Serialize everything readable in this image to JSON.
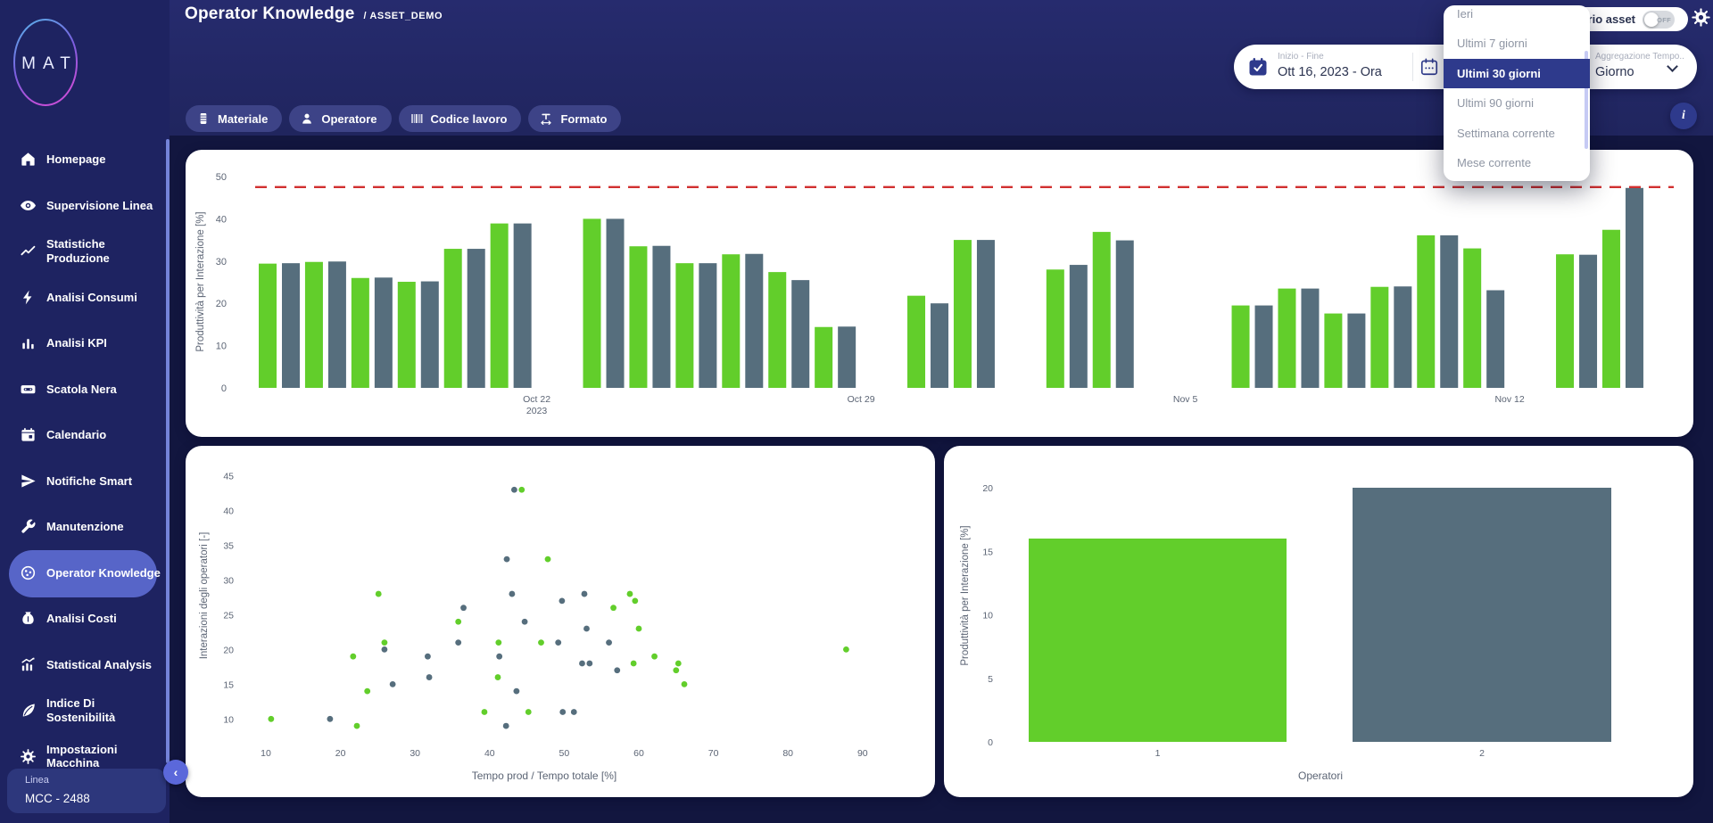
{
  "app": {
    "logo": "MAT",
    "title": "Operator Knowledge",
    "breadcrumb": "/ ASSET_DEMO"
  },
  "colors": {
    "green": "#62ce2b",
    "slate": "#566e7d",
    "threshold_red": "#d13030",
    "accent_indigo": "#2e3a8c",
    "selected_item": "#5765c8",
    "axis_text": "#5b6474"
  },
  "sidebar": {
    "items": [
      {
        "icon": "home-icon",
        "label": "Homepage"
      },
      {
        "icon": "eye-icon",
        "label": "Supervisione Linea"
      },
      {
        "icon": "trend-icon",
        "label": "Statistiche Produzione"
      },
      {
        "icon": "bolt-icon",
        "label": "Analisi Consumi"
      },
      {
        "icon": "kpi-icon",
        "label": "Analisi KPI"
      },
      {
        "icon": "blackbox-icon",
        "label": "Scatola Nera"
      },
      {
        "icon": "calendar-icon",
        "label": "Calendario"
      },
      {
        "icon": "send-icon",
        "label": "Notifiche Smart"
      },
      {
        "icon": "wrench-icon",
        "label": "Manutenzione"
      },
      {
        "icon": "globe-icon",
        "label": "Operator Knowledge",
        "selected": true
      },
      {
        "icon": "moneybag-icon",
        "label": "Analisi Costi"
      },
      {
        "icon": "stats-icon",
        "label": "Statistical Analysis"
      },
      {
        "icon": "leaf-icon",
        "label": "Indice Di Sostenibilità"
      },
      {
        "icon": "gear-icon",
        "label": "Impostazioni Macchina"
      }
    ],
    "line_card": {
      "label": "Linea",
      "value": "MCC - 2488"
    }
  },
  "filters": [
    {
      "icon": "material-icon",
      "label": "Materiale"
    },
    {
      "icon": "person-icon",
      "label": "Operatore"
    },
    {
      "icon": "barcode-icon",
      "label": "Codice lavoro"
    },
    {
      "icon": "width-icon",
      "label": "Formato"
    }
  ],
  "toolbar": {
    "date_range": {
      "label": "Inizio - Fine",
      "value": "Ott 16, 2023 - Ora"
    },
    "aggregation": {
      "label": "Aggregazione Tempo..",
      "value": "Giorno"
    },
    "asset_toggle": {
      "label": "Calendario asset",
      "state": "OFF"
    },
    "dropdown": {
      "options": [
        "Ieri",
        "Ultimi 7 giorni",
        "Ultimi 30 giorni",
        "Ultimi 90 giorni",
        "Settimana corrente",
        "Mese corrente"
      ],
      "selected_index": 2
    }
  },
  "chart_data": [
    {
      "id": "daily-productivity",
      "type": "bar",
      "ylabel": "Produttività per Interazione [%]",
      "ylim": [
        0,
        50
      ],
      "yticks": [
        0,
        10,
        20,
        30,
        40,
        50
      ],
      "threshold": 47.5,
      "num_day_slots": 30,
      "start_label": "Oct 16, 2023",
      "xticks": [
        {
          "day": 6,
          "lines": [
            "Oct 22",
            "2023"
          ]
        },
        {
          "day": 13,
          "lines": [
            "Oct 29"
          ]
        },
        {
          "day": 20,
          "lines": [
            "Nov 5"
          ]
        },
        {
          "day": 27,
          "lines": [
            "Nov 12"
          ]
        }
      ],
      "series_names": [
        "green",
        "slate"
      ],
      "days": [
        {
          "day": 0,
          "green": 29.4,
          "slate": 29.5
        },
        {
          "day": 1,
          "green": 29.8,
          "slate": 29.9
        },
        {
          "day": 2,
          "green": 26.0,
          "slate": 26.1
        },
        {
          "day": 3,
          "green": 25.1,
          "slate": 25.2
        },
        {
          "day": 4,
          "green": 32.9,
          "slate": 32.9
        },
        {
          "day": 5,
          "green": 38.9,
          "slate": 38.9
        },
        {
          "day": 7,
          "green": 40.0,
          "slate": 40.0
        },
        {
          "day": 8,
          "green": 33.5,
          "slate": 33.6
        },
        {
          "day": 9,
          "green": 29.5,
          "slate": 29.5
        },
        {
          "day": 10,
          "green": 31.6,
          "slate": 31.7
        },
        {
          "day": 11,
          "green": 27.4,
          "slate": 25.5
        },
        {
          "day": 12,
          "green": 14.4,
          "slate": 14.5
        },
        {
          "day": 14,
          "green": 21.8,
          "slate": 20.0
        },
        {
          "day": 15,
          "green": 35.0,
          "slate": 35.0
        },
        {
          "day": 17,
          "green": 28.0,
          "slate": 29.1
        },
        {
          "day": 18,
          "green": 36.9,
          "slate": 34.9
        },
        {
          "day": 21,
          "green": 19.5,
          "slate": 19.5
        },
        {
          "day": 22,
          "green": 23.5,
          "slate": 23.5
        },
        {
          "day": 23,
          "green": 17.6,
          "slate": 17.6
        },
        {
          "day": 24,
          "green": 23.9,
          "slate": 24.0
        },
        {
          "day": 25,
          "green": 36.1,
          "slate": 36.1
        },
        {
          "day": 26,
          "green": 33.0,
          "slate": 23.1
        },
        {
          "day": 28,
          "green": 31.6,
          "slate": 31.5
        },
        {
          "day": 29,
          "green": 37.4,
          "slate": 47.3
        }
      ]
    },
    {
      "id": "operator-interactions",
      "type": "scatter",
      "xlabel": "Tempo prod / Tempo totale [%]",
      "ylabel": "Interazioni degli operatori [-]",
      "xticks": [
        10,
        20,
        30,
        40,
        50,
        60,
        70,
        80,
        90
      ],
      "yticks": [
        10,
        15,
        20,
        25,
        30,
        35,
        40,
        45
      ],
      "series": [
        {
          "name": "green",
          "points": [
            [
              10.7,
              10
            ],
            [
              21.7,
              19
            ],
            [
              22.2,
              9
            ],
            [
              23.6,
              14
            ],
            [
              25.1,
              28
            ],
            [
              25.9,
              21
            ],
            [
              35.8,
              24
            ],
            [
              39.3,
              11
            ],
            [
              41.1,
              16
            ],
            [
              41.2,
              21
            ],
            [
              44.3,
              43
            ],
            [
              45.2,
              11
            ],
            [
              46.9,
              21
            ],
            [
              47.8,
              33
            ],
            [
              56.6,
              26
            ],
            [
              58.8,
              28
            ],
            [
              59.3,
              18
            ],
            [
              59.5,
              27
            ],
            [
              60,
              23
            ],
            [
              62.1,
              19
            ],
            [
              65,
              17
            ],
            [
              65.3,
              18
            ],
            [
              66.1,
              15
            ],
            [
              87.8,
              20
            ]
          ]
        },
        {
          "name": "slate",
          "points": [
            [
              18.6,
              10
            ],
            [
              25.9,
              20
            ],
            [
              27,
              15
            ],
            [
              31.7,
              19
            ],
            [
              31.9,
              16
            ],
            [
              35.8,
              21
            ],
            [
              36.5,
              26
            ],
            [
              41.3,
              19
            ],
            [
              42.2,
              9
            ],
            [
              42.3,
              33
            ],
            [
              43,
              28
            ],
            [
              43.3,
              43
            ],
            [
              43.6,
              14
            ],
            [
              44.7,
              24
            ],
            [
              49.2,
              21
            ],
            [
              49.7,
              27
            ],
            [
              49.8,
              11
            ],
            [
              51.3,
              11
            ],
            [
              52.4,
              18
            ],
            [
              52.7,
              28
            ],
            [
              53,
              23
            ],
            [
              53.4,
              18
            ],
            [
              56,
              21
            ],
            [
              57.1,
              17
            ]
          ]
        }
      ]
    },
    {
      "id": "operators-productivity",
      "type": "bar",
      "categories": [
        "1",
        "2"
      ],
      "values": [
        16,
        20
      ],
      "bar_colors": [
        "green",
        "slate"
      ],
      "xlabel": "Operatori",
      "ylabel": "Produttività per Interazione [%]",
      "yticks": [
        0,
        5,
        10,
        15,
        20
      ],
      "ylim": [
        0,
        23.3
      ]
    }
  ]
}
